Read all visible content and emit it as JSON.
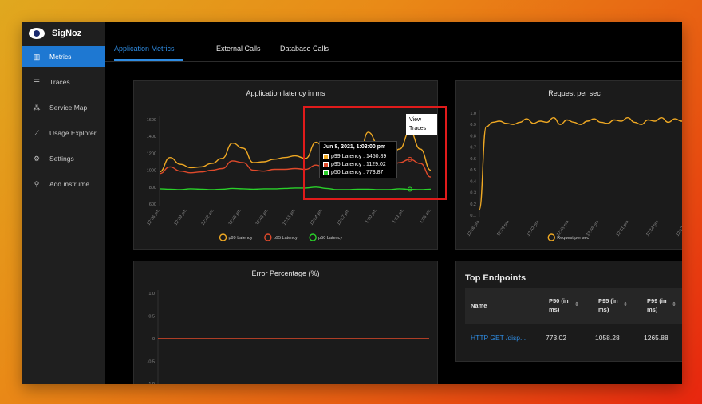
{
  "app": {
    "name": "SigNoz"
  },
  "sidebar": {
    "items": [
      {
        "label": "Metrics",
        "icon": "bar-chart-icon",
        "active": true
      },
      {
        "label": "Traces",
        "icon": "align-left-icon",
        "active": false
      },
      {
        "label": "Service Map",
        "icon": "deployment-unit-icon",
        "active": false
      },
      {
        "label": "Usage Explorer",
        "icon": "line-chart-icon",
        "active": false
      },
      {
        "label": "Settings",
        "icon": "gear-icon",
        "active": false
      },
      {
        "label": "Add instrume...",
        "icon": "api-icon",
        "active": false
      }
    ]
  },
  "tabs": [
    {
      "label": "Application Metrics",
      "active": true
    },
    {
      "label": "External Calls",
      "active": false
    },
    {
      "label": "Database Calls",
      "active": false
    }
  ],
  "latency_chart": {
    "title": "Application latency in ms",
    "chart_data": {
      "type": "line",
      "x_ticks": [
        "12:36 pm",
        "12:39 pm",
        "12:42 pm",
        "12:45 pm",
        "12:48 pm",
        "12:51 pm",
        "12:54 pm",
        "12:57 pm",
        "1:00 pm",
        "1:03 pm",
        "1:06 pm"
      ],
      "y_ticks": [
        "1600",
        "1400",
        "1200",
        "1000",
        "800",
        "600"
      ],
      "ylim": [
        600,
        1600
      ],
      "series": [
        {
          "name": "p99 Latency",
          "color": "#f0a923",
          "values": [
            980,
            1150,
            1070,
            1030,
            1040,
            1080,
            1140,
            1320,
            1260,
            1090,
            1100,
            1130,
            1150,
            1170,
            1140,
            1330,
            1220,
            1010,
            1020,
            1050,
            1450,
            1300,
            1120,
            1250,
            1460,
            1250,
            1000
          ]
        },
        {
          "name": "p95 Latency",
          "color": "#e04a2b",
          "values": [
            960,
            1040,
            990,
            970,
            980,
            1000,
            1020,
            1110,
            1090,
            1000,
            990,
            1010,
            1010,
            1020,
            1010,
            1060,
            1020,
            960,
            940,
            970,
            1129,
            1080,
            1010,
            1090,
            1129,
            1080,
            920
          ]
        },
        {
          "name": "p50 Latency",
          "color": "#2ad12a",
          "values": [
            780,
            775,
            770,
            780,
            775,
            770,
            775,
            785,
            780,
            775,
            780,
            780,
            785,
            790,
            790,
            800,
            785,
            770,
            770,
            775,
            775,
            770,
            770,
            780,
            774,
            770,
            775
          ]
        }
      ]
    }
  },
  "tooltip": {
    "title": "Jun 8, 2021, 1:03:00 pm",
    "rows": [
      {
        "text": "p99 Latency : 1450.89",
        "color": "#f0a923"
      },
      {
        "text": "p95 Latency : 1129.02",
        "color": "#e04a2b"
      },
      {
        "text": "p50 Latency : 773.87",
        "color": "#2ad12a"
      }
    ],
    "view_traces": "View Traces"
  },
  "rps_chart": {
    "title": "Request per sec",
    "chart_data": {
      "type": "line",
      "x_ticks": [
        "12:36 pm",
        "12:39 pm",
        "12:42 pm",
        "12:45 pm",
        "12:48 pm",
        "12:51 pm",
        "12:54 pm",
        "12:57 pm"
      ],
      "y_ticks": [
        "1.0",
        "0.9",
        "0.8",
        "0.7",
        "0.6",
        "0.5",
        "0.4",
        "0.3",
        "0.2",
        "0.1"
      ],
      "ylim": [
        0.1,
        1.0
      ],
      "series": [
        {
          "name": "Request per sec",
          "color": "#f0a923",
          "values": [
            0.15,
            0.88,
            0.92,
            0.93,
            0.91,
            0.9,
            0.92,
            0.95,
            0.91,
            0.93,
            0.92,
            0.96,
            0.9,
            0.94,
            0.92,
            0.9,
            0.93,
            0.95,
            0.92,
            0.91,
            0.94,
            0.93,
            0.96,
            0.92,
            0.9,
            0.94,
            0.93,
            0.96,
            0.92,
            0.95,
            0.93,
            0.92
          ]
        }
      ]
    }
  },
  "error_chart": {
    "title": "Error Percentage (%)",
    "chart_data": {
      "type": "line",
      "y_ticks": [
        "1.0",
        "0.5",
        "0",
        "-0.5",
        "-1.0"
      ],
      "ylim": [
        -1.0,
        1.0
      ],
      "series": [
        {
          "color": "#e04a2b",
          "values": [
            0,
            0,
            0,
            0,
            0,
            0,
            0,
            0,
            0,
            0
          ]
        }
      ]
    }
  },
  "endpoints": {
    "title": "Top Endpoints",
    "columns": {
      "name": "Name",
      "p50": "P50 (in ms)",
      "p95": "P95 (in ms)",
      "p99": "P99 (in ms)"
    },
    "rows": [
      {
        "name": "HTTP GET /disp...",
        "p50": "773.02",
        "p95": "1058.28",
        "p99": "1265.88"
      }
    ]
  }
}
